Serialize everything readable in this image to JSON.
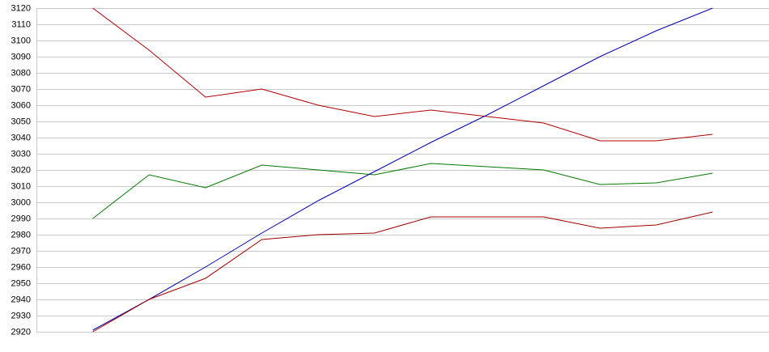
{
  "chart_data": {
    "type": "line",
    "x": [
      1,
      2,
      3,
      4,
      5,
      6,
      7,
      8,
      9,
      10,
      11,
      12
    ],
    "xlim": [
      0,
      13
    ],
    "series": [
      {
        "color": "#b00000",
        "values": [
          3120,
          3094,
          3065,
          3070,
          3060,
          3053,
          3057,
          3053,
          3049,
          3038,
          3038,
          3042
        ]
      },
      {
        "color": "#007a00",
        "values": [
          2990,
          3017,
          3009,
          3023,
          3020,
          3017,
          3024,
          3022,
          3020,
          3011,
          3012,
          3018
        ]
      },
      {
        "color": "#0000b0",
        "values": [
          2921,
          2940,
          2960,
          2981,
          3001,
          3019,
          3037,
          3054,
          3072,
          3090,
          3106,
          3120
        ]
      },
      {
        "color": "#a00000",
        "values": [
          2920,
          2940,
          2953,
          2977,
          2980,
          2981,
          2991,
          2991,
          2991,
          2984,
          2986,
          2994
        ]
      }
    ],
    "ylim": [
      2920,
      3120
    ],
    "yticks": [
      2920,
      2930,
      2940,
      2950,
      2960,
      2970,
      2980,
      2990,
      3000,
      3010,
      3020,
      3030,
      3040,
      3050,
      3060,
      3070,
      3080,
      3090,
      3100,
      3110,
      3120
    ],
    "grid": true
  }
}
